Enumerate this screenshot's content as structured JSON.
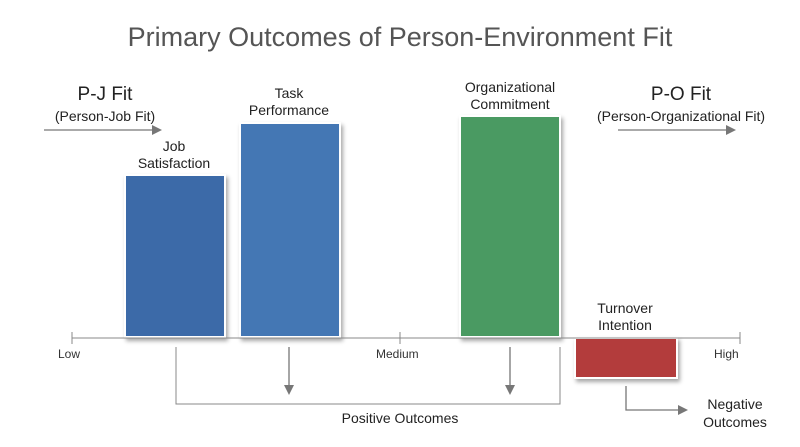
{
  "title": "Primary Outcomes of Person-Environment Fit",
  "pj_fit": {
    "name": "P-J Fit",
    "sub": "(Person-Job Fit)"
  },
  "po_fit": {
    "name": "P-O Fit",
    "sub": "(Person-Organizational Fit)"
  },
  "axis": {
    "low": "Low",
    "medium": "Medium",
    "high": "High"
  },
  "bars": [
    {
      "label_line1": "Job",
      "label_line2": "Satisfaction",
      "color": "#3c6aa8"
    },
    {
      "label_line1": "Task",
      "label_line2": "Performance",
      "color": "#4477b4"
    },
    {
      "label_line1": "Organizational",
      "label_line2": "Commitment",
      "color": "#4a9a62"
    },
    {
      "label_line1": "Turnover",
      "label_line2": "Intention",
      "color": "#b33c3c"
    }
  ],
  "groups": {
    "positive": "Positive Outcomes",
    "negative_line1": "Negative",
    "negative_line2": "Outcomes"
  }
}
